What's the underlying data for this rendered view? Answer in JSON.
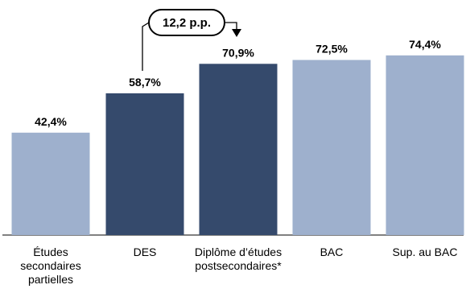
{
  "chart_data": {
    "type": "bar",
    "categories": [
      "Études secondaires partielles",
      "DES",
      "Diplôme d’études postsecondaires*",
      "BAC",
      "Sup. au BAC"
    ],
    "values": [
      42.4,
      58.7,
      70.9,
      72.5,
      74.4
    ],
    "value_labels": [
      "42,4%",
      "58,7%",
      "70,9%",
      "72,5%",
      "74,4%"
    ],
    "ylim": [
      0,
      100
    ],
    "grid": false,
    "colors": {
      "light": "#9eb0cd",
      "dark": "#354a6c"
    },
    "bar_colors": [
      "light",
      "dark",
      "dark",
      "light",
      "light"
    ],
    "annotation": {
      "text": "12,2 p.p.",
      "from_index": 1,
      "to_index": 2
    }
  }
}
